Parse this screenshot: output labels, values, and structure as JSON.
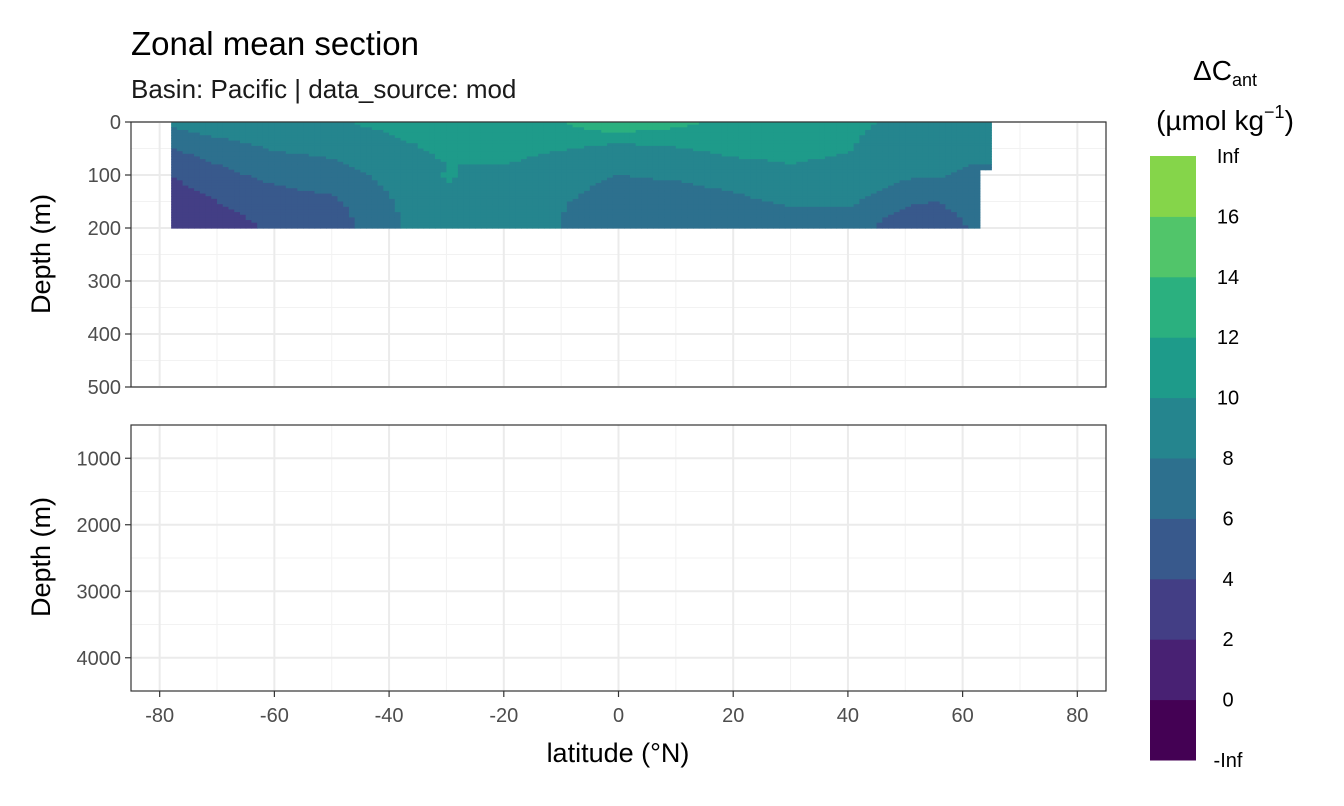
{
  "chart_data": {
    "type": "heatmap",
    "title": "Zonal mean section",
    "subtitle": "Basin: Pacific | data_source: mod",
    "xlabel": "latitude (°N)",
    "ylabel": "Depth (m)",
    "xlim": [
      -85,
      85
    ],
    "x_ticks": [
      -80,
      -60,
      -40,
      -20,
      0,
      20,
      40,
      60,
      80
    ],
    "grid": true,
    "panels": [
      {
        "name": "upper",
        "ylim": [
          0,
          500
        ],
        "y_ticks": [
          0,
          100,
          200,
          300,
          400,
          500
        ]
      },
      {
        "name": "lower",
        "ylim": [
          500,
          4500
        ],
        "y_ticks": [
          1000,
          2000,
          3000,
          4000
        ]
      }
    ],
    "legend": {
      "title_main": "ΔC",
      "title_sub": "ant",
      "title_units_pre": "(µmol kg",
      "title_units_sup": "−1",
      "title_units_post": ")",
      "position": "right",
      "breaks": [
        "-Inf",
        "0",
        "2",
        "4",
        "6",
        "8",
        "10",
        "12",
        "14",
        "16",
        "Inf"
      ],
      "colors": [
        "#440154",
        "#482173",
        "#433E85",
        "#38598C",
        "#2D708E",
        "#25858E",
        "#1E9B8A",
        "#2BB07F",
        "#51C56A",
        "#85D54A",
        "#C2DF23",
        "#FDE725"
      ]
    },
    "depths": [
      0,
      20,
      40,
      60,
      80,
      100,
      125,
      150,
      175,
      200
    ],
    "lats": [
      -78,
      -70,
      -60,
      -50,
      -40,
      -30,
      -20,
      -10,
      0,
      10,
      20,
      30,
      40,
      50,
      55,
      61,
      65
    ],
    "values": [
      [
        8.5,
        9,
        9.2,
        9.8,
        10.5,
        11,
        11.5,
        12,
        12.5,
        12.3,
        11.7,
        11,
        10.5,
        9.5,
        9,
        9,
        9
      ],
      [
        7.5,
        8.5,
        9,
        9.5,
        10,
        10.8,
        11.2,
        11.8,
        12,
        11.8,
        11.2,
        10.8,
        10.3,
        9.2,
        9,
        8.8,
        8.8
      ],
      [
        6.5,
        7.5,
        8.5,
        9,
        9.8,
        10.3,
        10.8,
        10.5,
        10,
        10.3,
        10.8,
        10.5,
        10.2,
        9,
        8.8,
        8.5,
        8.5
      ],
      [
        5.5,
        6.8,
        7.8,
        8.3,
        9.5,
        10.2,
        10.5,
        9.8,
        9.2,
        9.5,
        10.2,
        10.3,
        10,
        8.8,
        8.5,
        8.2,
        8.2
      ],
      [
        4.8,
        6,
        7.2,
        7.6,
        9,
        10,
        10,
        9.3,
        8.6,
        9,
        9.6,
        10,
        9.6,
        8.6,
        8.4,
        8,
        8
      ],
      [
        4,
        5.4,
        6.6,
        7.2,
        8.5,
        10.1,
        9.6,
        8.8,
        8,
        8.3,
        9,
        9.6,
        9.2,
        8.3,
        8.2,
        7.8,
        null
      ],
      [
        3.5,
        4.6,
        5.8,
        6.4,
        8.2,
        10,
        9.2,
        8.5,
        7.5,
        7.6,
        8.2,
        9.1,
        9,
        7.4,
        7.2,
        7.5,
        null
      ],
      [
        2.8,
        4,
        5.2,
        5.6,
        7.8,
        10,
        8.9,
        8.2,
        7,
        7.1,
        7.5,
        8.3,
        8.4,
        6.4,
        6,
        7,
        null
      ],
      [
        2.5,
        3.5,
        4.6,
        5.2,
        7.6,
        10,
        8.7,
        8,
        6.8,
        6.8,
        7,
        7.6,
        7.6,
        5.4,
        5,
        6.5,
        null
      ],
      [
        2.2,
        3.1,
        4.3,
        4.8,
        7.5,
        10,
        8.6,
        8,
        6.6,
        6.6,
        6.8,
        7.2,
        7,
        4.8,
        4.2,
        6,
        null
      ]
    ]
  }
}
